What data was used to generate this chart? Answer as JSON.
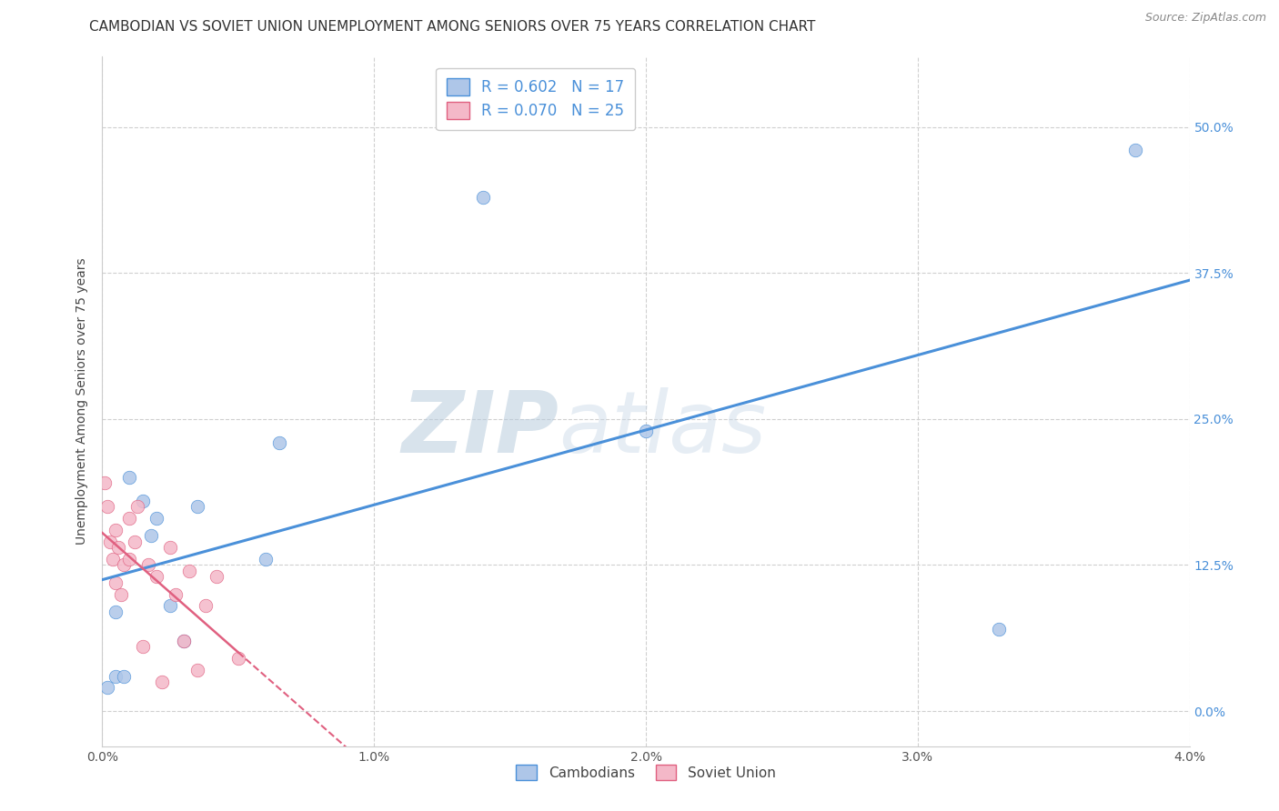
{
  "title": "CAMBODIAN VS SOVIET UNION UNEMPLOYMENT AMONG SENIORS OVER 75 YEARS CORRELATION CHART",
  "source": "Source: ZipAtlas.com",
  "ylabel": "Unemployment Among Seniors over 75 years",
  "xlim": [
    0.0,
    0.04
  ],
  "ylim": [
    -0.03,
    0.56
  ],
  "xticks": [
    0.0,
    0.01,
    0.02,
    0.03,
    0.04
  ],
  "xtick_labels": [
    "0.0%",
    "1.0%",
    "2.0%",
    "3.0%",
    "4.0%"
  ],
  "yticks": [
    0.0,
    0.125,
    0.25,
    0.375,
    0.5
  ],
  "ytick_labels": [
    "0.0%",
    "12.5%",
    "25.0%",
    "37.5%",
    "50.0%"
  ],
  "cambodian_R": 0.602,
  "cambodian_N": 17,
  "soviet_R": 0.07,
  "soviet_N": 25,
  "cambodian_color": "#aec6e8",
  "cambodian_line_color": "#4a90d9",
  "soviet_color": "#f4b8c8",
  "soviet_line_color": "#e06080",
  "watermark_zip": "ZIP",
  "watermark_atlas": "atlas",
  "cambodian_x": [
    0.0002,
    0.0005,
    0.0005,
    0.0008,
    0.001,
    0.0015,
    0.0018,
    0.002,
    0.0025,
    0.003,
    0.0035,
    0.006,
    0.0065,
    0.014,
    0.02,
    0.033,
    0.038
  ],
  "cambodian_y": [
    0.02,
    0.03,
    0.085,
    0.03,
    0.2,
    0.18,
    0.15,
    0.165,
    0.09,
    0.06,
    0.175,
    0.13,
    0.23,
    0.44,
    0.24,
    0.07,
    0.48
  ],
  "soviet_x": [
    0.0001,
    0.0002,
    0.0003,
    0.0004,
    0.0005,
    0.0005,
    0.0006,
    0.0007,
    0.0008,
    0.001,
    0.001,
    0.0012,
    0.0013,
    0.0015,
    0.0017,
    0.002,
    0.0022,
    0.0025,
    0.0027,
    0.003,
    0.0032,
    0.0035,
    0.0038,
    0.0042,
    0.005
  ],
  "soviet_y": [
    0.195,
    0.175,
    0.145,
    0.13,
    0.155,
    0.11,
    0.14,
    0.1,
    0.125,
    0.165,
    0.13,
    0.145,
    0.175,
    0.055,
    0.125,
    0.115,
    0.025,
    0.14,
    0.1,
    0.06,
    0.12,
    0.035,
    0.09,
    0.115,
    0.045
  ],
  "grid_color": "#d0d0d0",
  "bg_color": "#ffffff",
  "title_fontsize": 11,
  "axis_label_fontsize": 10,
  "tick_fontsize": 10,
  "legend_fontsize": 12,
  "marker_size": 110
}
